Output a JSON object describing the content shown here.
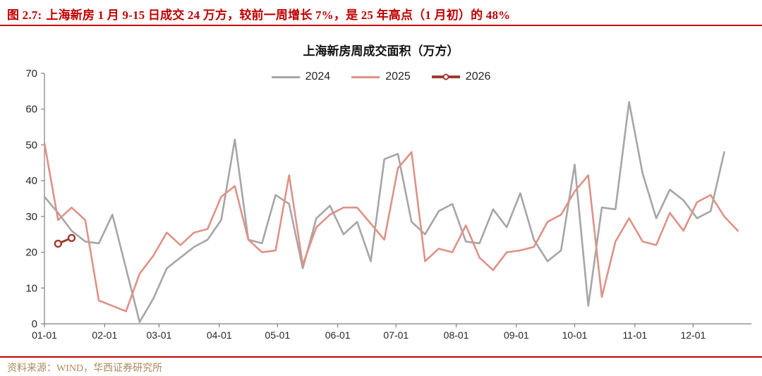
{
  "header": {
    "figure_label": "图 2.7:",
    "title": "上海新房 1 月 9-15 日成交 24 万方，较前一周增长 7%，是 25 年高点（1 月初）的 48%"
  },
  "footer": {
    "source": "资料来源：WIND，华西证券研究所"
  },
  "colors": {
    "header_red": "#c00000",
    "rule_red": "#c00000",
    "footer_tan": "#aa8a5e",
    "axis_line": "#808080",
    "tick_text": "#262626",
    "series_2024": "#a6a6a6",
    "series_2025": "#de9287",
    "series_2026": "#a03b2d"
  },
  "chart_data": {
    "type": "line",
    "title": "上海新房周成交面积（万方）",
    "xlabel": "",
    "ylabel": "",
    "x_unit": "week (7-day steps across one year)",
    "ylim": [
      0,
      70
    ],
    "y_ticks": [
      0,
      10,
      20,
      30,
      40,
      50,
      60,
      70
    ],
    "x_ticks": [
      {
        "label": "01-01",
        "day": 1
      },
      {
        "label": "02-01",
        "day": 32
      },
      {
        "label": "03-01",
        "day": 60
      },
      {
        "label": "04-01",
        "day": 91
      },
      {
        "label": "05-01",
        "day": 121
      },
      {
        "label": "06-01",
        "day": 152
      },
      {
        "label": "07-01",
        "day": 182
      },
      {
        "label": "08-01",
        "day": 213
      },
      {
        "label": "09-01",
        "day": 244
      },
      {
        "label": "10-01",
        "day": 274
      },
      {
        "label": "11-01",
        "day": 305
      },
      {
        "label": "12-01",
        "day": 335
      }
    ],
    "grid": false,
    "legend_position": "top-center",
    "series": [
      {
        "name": "2024",
        "color": "#a6a6a6",
        "line_width": 2.6,
        "marker": false,
        "values": [
          35.5,
          31,
          26,
          23,
          22.5,
          30.5,
          15.5,
          0.5,
          7,
          15.5,
          18.5,
          21.5,
          23.5,
          29,
          51.5,
          23.5,
          22.5,
          36,
          33.5,
          15.5,
          29.5,
          33,
          25,
          28.5,
          17.5,
          46,
          47.5,
          28.5,
          25,
          31.5,
          33.5,
          23,
          22.5,
          32,
          27,
          36.5,
          23.5,
          17.5,
          20.5,
          44.5,
          5,
          32.5,
          32,
          62,
          42,
          29.5,
          37.5,
          34.5,
          29.5,
          31.5,
          48
        ]
      },
      {
        "name": "2025",
        "color": "#de9287",
        "line_width": 2.6,
        "marker": false,
        "values": [
          50.5,
          29,
          32.5,
          29,
          6.5,
          5,
          3.5,
          14,
          19,
          25.5,
          22,
          25.5,
          26.5,
          35.5,
          38.5,
          23.5,
          20,
          20.5,
          41.5,
          16.5,
          27,
          30.5,
          32.5,
          32.5,
          28,
          23.5,
          43.5,
          48,
          17.5,
          21,
          20,
          27.5,
          18.5,
          15,
          20,
          20.5,
          21.5,
          28.5,
          30.5,
          37,
          41.5,
          7.5,
          23,
          29.5,
          23,
          22,
          31,
          26,
          34,
          36,
          30,
          26
        ]
      },
      {
        "name": "2026",
        "color": "#a03b2d",
        "line_width": 3,
        "marker": true,
        "values": [
          null,
          22.4,
          24
        ]
      }
    ]
  }
}
